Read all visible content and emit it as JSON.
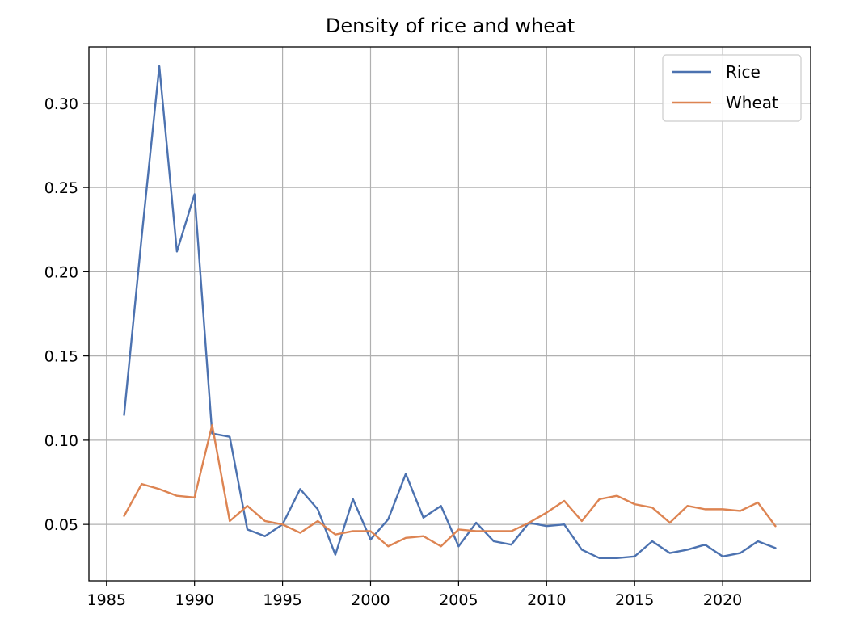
{
  "chart_data": {
    "type": "line",
    "title": "Density of rice and wheat",
    "xlabel": "",
    "ylabel": "",
    "xlim": [
      1984.0,
      2025.0
    ],
    "ylim": [
      0.0165,
      0.3335
    ],
    "xticks": [
      1985,
      1990,
      1995,
      2000,
      2005,
      2010,
      2015,
      2020
    ],
    "yticks": [
      0.05,
      0.1,
      0.15,
      0.2,
      0.25,
      0.3
    ],
    "ytick_labels": [
      "0.05",
      "0.10",
      "0.15",
      "0.20",
      "0.25",
      "0.30"
    ],
    "grid": true,
    "legend_position": "upper right",
    "x": [
      1986,
      1987,
      1988,
      1989,
      1990,
      1991,
      1992,
      1993,
      1994,
      1995,
      1996,
      1997,
      1998,
      1999,
      2000,
      2001,
      2002,
      2003,
      2004,
      2005,
      2006,
      2007,
      2008,
      2009,
      2010,
      2011,
      2012,
      2013,
      2014,
      2015,
      2016,
      2017,
      2018,
      2019,
      2020,
      2021,
      2022,
      2023
    ],
    "series": [
      {
        "name": "Rice",
        "color": "#4c72b0",
        "values": [
          0.115,
          0.221,
          0.322,
          0.212,
          0.246,
          0.104,
          0.102,
          0.047,
          0.043,
          0.05,
          0.071,
          0.059,
          0.032,
          0.065,
          0.041,
          0.053,
          0.08,
          0.054,
          0.061,
          0.037,
          0.051,
          0.04,
          0.038,
          0.051,
          0.049,
          0.05,
          0.035,
          0.03,
          0.03,
          0.031,
          0.04,
          0.033,
          0.035,
          0.038,
          0.031,
          0.033,
          0.04,
          0.036
        ]
      },
      {
        "name": "Wheat",
        "color": "#dd8452",
        "values": [
          0.055,
          0.074,
          0.071,
          0.067,
          0.066,
          0.109,
          0.052,
          0.061,
          0.052,
          0.05,
          0.045,
          0.052,
          0.044,
          0.046,
          0.046,
          0.037,
          0.042,
          0.043,
          0.037,
          0.047,
          0.046,
          0.046,
          0.046,
          0.051,
          0.057,
          0.064,
          0.052,
          0.065,
          0.067,
          0.062,
          0.06,
          0.051,
          0.061,
          0.059,
          0.059,
          0.058,
          0.063,
          0.049
        ]
      }
    ]
  }
}
